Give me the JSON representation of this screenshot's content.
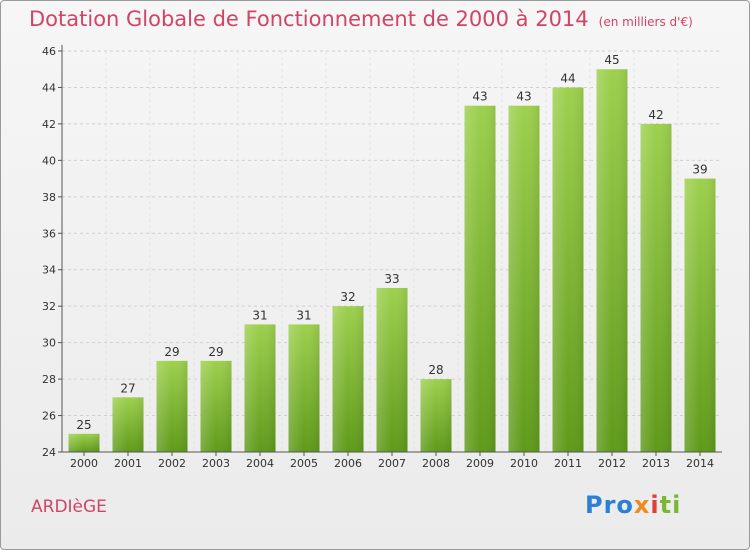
{
  "title": "Dotation Globale de Fonctionnement de 2000 à 2014",
  "unit": "(en milliers d'€)",
  "commune": "ARDIèGE",
  "logo": {
    "p1": "Pro",
    "p2": "x",
    "p3": "i",
    "p4": "ti"
  },
  "colors": {
    "title": "#d14466",
    "bar_light": "#9dd04e",
    "bar_dark": "#5f9a1a",
    "grid": "#cfcfcf"
  },
  "chart_data": {
    "type": "bar",
    "title": "Dotation Globale de Fonctionnement de 2000 à 2014",
    "subtitle": "(en milliers d'€)",
    "categories": [
      "2000",
      "2001",
      "2002",
      "2003",
      "2004",
      "2005",
      "2006",
      "2007",
      "2008",
      "2009",
      "2010",
      "2011",
      "2012",
      "2013",
      "2014"
    ],
    "values": [
      25,
      27,
      29,
      29,
      31,
      31,
      32,
      33,
      28,
      43,
      43,
      44,
      45,
      42,
      39
    ],
    "ylim": [
      24,
      46
    ],
    "yticks": [
      24,
      26,
      28,
      30,
      32,
      34,
      36,
      38,
      40,
      42,
      44,
      46
    ],
    "grid": true,
    "data_labels": true
  }
}
